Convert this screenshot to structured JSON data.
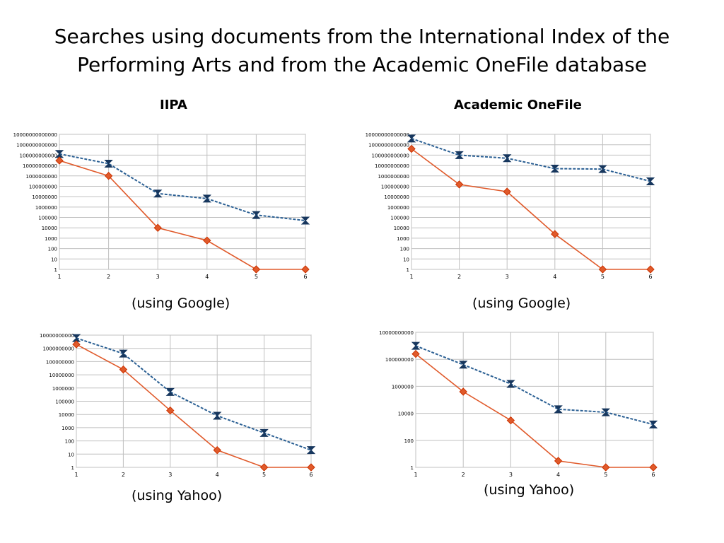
{
  "slide": {
    "title": "Searches using documents from the International Index of the Performing Arts and from the Academic OneFile database",
    "column_headings": [
      "IIPA",
      "Academic OneFile"
    ]
  },
  "colors": {
    "blue_series": "#2a5f93",
    "red_series": "#e05a2b",
    "marker_blue": "#17375e",
    "marker_red": "#cc3300",
    "grid": "#c0c0c0"
  },
  "chart_data": [
    {
      "type": "line",
      "caption": "(using Google)",
      "yscale": "log",
      "ylim": [
        1,
        10000000000000
      ],
      "yticks": [
        1,
        10,
        100,
        1000,
        10000,
        100000,
        1000000,
        10000000,
        100000000,
        1000000000,
        10000000000,
        100000000000,
        1000000000000,
        10000000000000
      ],
      "ytick_labels": [
        "1",
        "10",
        "100",
        "1000",
        "10000",
        "100000",
        "1000000",
        "10000000",
        "100000000",
        "1000000000",
        "10000000000",
        "100000000000",
        "1000000000000",
        "10000000000000"
      ],
      "x": [
        1,
        2,
        3,
        4,
        5,
        6
      ],
      "series": [
        {
          "values": [
            130000000000,
            15000000000,
            20000000,
            6500000,
            170000,
            50000
          ],
          "style": "dashed"
        },
        {
          "values": [
            30000000000,
            1000000000,
            10000,
            600,
            1,
            1
          ],
          "style": "solid"
        }
      ]
    },
    {
      "type": "line",
      "caption": "(using Google)",
      "yscale": "log",
      "ylim": [
        1,
        10000000000000
      ],
      "yticks": [
        1,
        10,
        100,
        1000,
        10000,
        100000,
        1000000,
        10000000,
        100000000,
        1000000000,
        10000000000,
        100000000000,
        1000000000000,
        10000000000000
      ],
      "ytick_labels": [
        "1",
        "10",
        "100",
        "1000",
        "10000",
        "100000",
        "1000000",
        "10000000",
        "100000000",
        "1000000000",
        "10000000000",
        "100000000000",
        "1000000000000",
        "10000000000000"
      ],
      "x": [
        1,
        2,
        3,
        4,
        5,
        6
      ],
      "series": [
        {
          "values": [
            4000000000000,
            100000000000,
            50000000000,
            5000000000,
            4500000000,
            300000000
          ],
          "style": "dashed"
        },
        {
          "values": [
            400000000000,
            150000000,
            30000000,
            2500,
            1,
            1
          ],
          "style": "solid"
        }
      ]
    },
    {
      "type": "line",
      "caption": "(using Yahoo)",
      "yscale": "log",
      "ylim": [
        1,
        10000000000
      ],
      "yticks": [
        1,
        10,
        100,
        1000,
        10000,
        100000,
        1000000,
        10000000,
        100000000,
        1000000000,
        10000000000
      ],
      "ytick_labels": [
        "1",
        "10",
        "100",
        "1000",
        "10000",
        "100000",
        "1000000",
        "10000000",
        "100000000",
        "1000000000",
        "10000000000"
      ],
      "x": [
        1,
        2,
        3,
        4,
        5,
        6
      ],
      "series": [
        {
          "values": [
            6000000000,
            400000000,
            500000,
            8000,
            400,
            20
          ],
          "style": "dashed"
        },
        {
          "values": [
            2000000000,
            25000000,
            20000,
            20,
            1,
            1
          ],
          "style": "solid"
        }
      ]
    },
    {
      "type": "line",
      "caption": "(using Yahoo)",
      "yscale": "log",
      "ylim": [
        1,
        10000000000
      ],
      "yticks": [
        1,
        100,
        10000,
        1000000,
        100000000,
        10000000000
      ],
      "ytick_labels": [
        "1",
        "100",
        "10000",
        "1000000",
        "100000000",
        "10000000000"
      ],
      "x": [
        1,
        2,
        3,
        4,
        5,
        6
      ],
      "series": [
        {
          "values": [
            1000000000,
            40000000,
            1500000,
            20000,
            12000,
            1500
          ],
          "style": "dashed"
        },
        {
          "values": [
            250000000,
            400000,
            3000,
            3,
            1,
            1
          ],
          "style": "solid"
        }
      ]
    }
  ]
}
